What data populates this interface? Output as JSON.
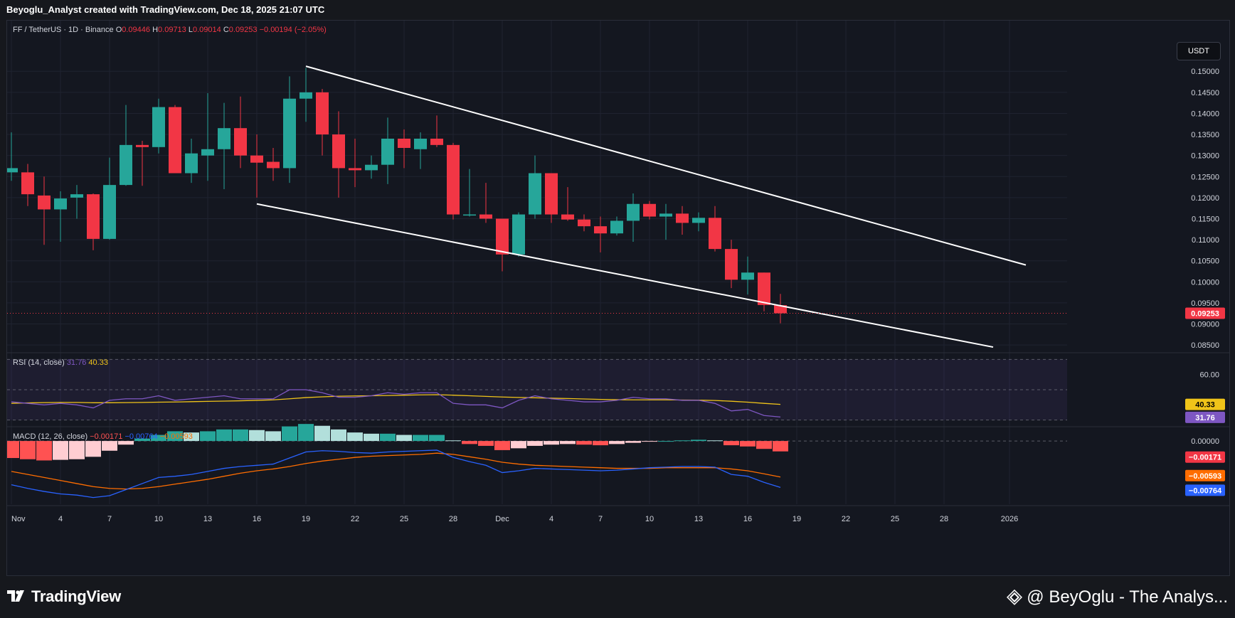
{
  "header": {
    "caption": "Beyoglu_Analyst created with TradingView.com, Dec 18, 2025 21:07 UTC"
  },
  "currency_button": "USDT",
  "legend": {
    "symbol": "FF / TetherUS · 1D · Binance",
    "o_label": "O",
    "o": "0.09446",
    "h_label": "H",
    "h": "0.09713",
    "l_label": "L",
    "l": "0.09014",
    "c_label": "C",
    "c": "0.09253",
    "change": "−0.00194 (−2.05%)"
  },
  "rsi_legend": {
    "name": "RSI (14, close)",
    "rsi": "31.76",
    "ma": "40.33"
  },
  "macd_legend": {
    "name": "MACD (12, 26, close)",
    "hist": "−0.00171",
    "macd": "−0.00764",
    "signal": "−0.00593"
  },
  "footer": {
    "logo_text": "TradingView",
    "watermark": "@ BeyOglu - The Analys..."
  },
  "colors": {
    "up": "#26a69a",
    "down": "#f23645",
    "rsi_line": "#7e57c2",
    "rsi_ma": "#f0c419",
    "macd_line": "#2962ff",
    "signal_line": "#ff6d00",
    "grid": "#1f2330",
    "text": "#b2b5be"
  },
  "chart_data": {
    "type": "candlestick",
    "price_axis": {
      "ticks": [
        "0.15000",
        "0.14500",
        "0.14000",
        "0.13500",
        "0.13000",
        "0.12500",
        "0.12000",
        "0.11500",
        "0.11000",
        "0.10500",
        "0.10000",
        "0.09500",
        "0.09000",
        "0.08500"
      ],
      "ylim": [
        0.0835,
        0.1546
      ],
      "last_price": "0.09253",
      "last": 0.09253
    },
    "x_ticks": [
      "Nov",
      "4",
      "7",
      "10",
      "13",
      "16",
      "19",
      "22",
      "25",
      "28",
      "Dec",
      "4",
      "7",
      "10",
      "13",
      "16",
      "19",
      "22",
      "25",
      "28",
      "2026"
    ],
    "candles": [
      {
        "date": "2025-11-01",
        "o": 0.126,
        "h": 0.1355,
        "l": 0.124,
        "c": 0.127
      },
      {
        "date": "2025-11-02",
        "o": 0.126,
        "h": 0.128,
        "l": 0.118,
        "c": 0.1208
      },
      {
        "date": "2025-11-03",
        "o": 0.1205,
        "h": 0.125,
        "l": 0.1088,
        "c": 0.1172
      },
      {
        "date": "2025-11-04",
        "o": 0.1172,
        "h": 0.1215,
        "l": 0.1095,
        "c": 0.1198
      },
      {
        "date": "2025-11-05",
        "o": 0.12,
        "h": 0.123,
        "l": 0.115,
        "c": 0.1208
      },
      {
        "date": "2025-11-06",
        "o": 0.1208,
        "h": 0.121,
        "l": 0.1075,
        "c": 0.1102
      },
      {
        "date": "2025-11-07",
        "o": 0.1102,
        "h": 0.1295,
        "l": 0.11,
        "c": 0.123
      },
      {
        "date": "2025-11-08",
        "o": 0.123,
        "h": 0.142,
        "l": 0.1228,
        "c": 0.1325
      },
      {
        "date": "2025-11-09",
        "o": 0.1325,
        "h": 0.1335,
        "l": 0.1228,
        "c": 0.132
      },
      {
        "date": "2025-11-10",
        "o": 0.132,
        "h": 0.1435,
        "l": 0.1305,
        "c": 0.1415
      },
      {
        "date": "2025-11-11",
        "o": 0.1415,
        "h": 0.142,
        "l": 0.1258,
        "c": 0.1258
      },
      {
        "date": "2025-11-12",
        "o": 0.1258,
        "h": 0.134,
        "l": 0.1235,
        "c": 0.1305
      },
      {
        "date": "2025-11-13",
        "o": 0.13,
        "h": 0.1448,
        "l": 0.124,
        "c": 0.1315
      },
      {
        "date": "2025-11-14",
        "o": 0.1315,
        "h": 0.1425,
        "l": 0.122,
        "c": 0.1365
      },
      {
        "date": "2025-11-15",
        "o": 0.1365,
        "h": 0.144,
        "l": 0.127,
        "c": 0.13
      },
      {
        "date": "2025-11-16",
        "o": 0.13,
        "h": 0.135,
        "l": 0.12,
        "c": 0.1283
      },
      {
        "date": "2025-11-17",
        "o": 0.1285,
        "h": 0.1318,
        "l": 0.124,
        "c": 0.127
      },
      {
        "date": "2025-11-18",
        "o": 0.127,
        "h": 0.1488,
        "l": 0.1235,
        "c": 0.1435
      },
      {
        "date": "2025-11-19",
        "o": 0.1435,
        "h": 0.1508,
        "l": 0.138,
        "c": 0.145
      },
      {
        "date": "2025-11-20",
        "o": 0.145,
        "h": 0.1458,
        "l": 0.13,
        "c": 0.135
      },
      {
        "date": "2025-11-21",
        "o": 0.135,
        "h": 0.1405,
        "l": 0.12,
        "c": 0.127
      },
      {
        "date": "2025-11-22",
        "o": 0.127,
        "h": 0.134,
        "l": 0.1225,
        "c": 0.1265
      },
      {
        "date": "2025-11-23",
        "o": 0.1265,
        "h": 0.13,
        "l": 0.1245,
        "c": 0.1278
      },
      {
        "date": "2025-11-24",
        "o": 0.1278,
        "h": 0.139,
        "l": 0.1232,
        "c": 0.134
      },
      {
        "date": "2025-11-25",
        "o": 0.134,
        "h": 0.1362,
        "l": 0.127,
        "c": 0.1318
      },
      {
        "date": "2025-11-26",
        "o": 0.1315,
        "h": 0.1355,
        "l": 0.1268,
        "c": 0.134
      },
      {
        "date": "2025-11-27",
        "o": 0.134,
        "h": 0.1395,
        "l": 0.132,
        "c": 0.1325
      },
      {
        "date": "2025-11-28",
        "o": 0.1325,
        "h": 0.133,
        "l": 0.1148,
        "c": 0.116
      },
      {
        "date": "2025-11-29",
        "o": 0.116,
        "h": 0.1268,
        "l": 0.1155,
        "c": 0.116
      },
      {
        "date": "2025-11-30",
        "o": 0.116,
        "h": 0.1235,
        "l": 0.114,
        "c": 0.115
      },
      {
        "date": "2025-12-01",
        "o": 0.115,
        "h": 0.115,
        "l": 0.1025,
        "c": 0.1065
      },
      {
        "date": "2025-12-02",
        "o": 0.1065,
        "h": 0.1165,
        "l": 0.106,
        "c": 0.116
      },
      {
        "date": "2025-12-03",
        "o": 0.116,
        "h": 0.13,
        "l": 0.115,
        "c": 0.1258
      },
      {
        "date": "2025-12-04",
        "o": 0.1258,
        "h": 0.1258,
        "l": 0.114,
        "c": 0.116
      },
      {
        "date": "2025-12-05",
        "o": 0.116,
        "h": 0.1225,
        "l": 0.1145,
        "c": 0.1148
      },
      {
        "date": "2025-12-06",
        "o": 0.1148,
        "h": 0.116,
        "l": 0.112,
        "c": 0.1132
      },
      {
        "date": "2025-12-07",
        "o": 0.1132,
        "h": 0.1155,
        "l": 0.107,
        "c": 0.1115
      },
      {
        "date": "2025-12-08",
        "o": 0.1115,
        "h": 0.1155,
        "l": 0.111,
        "c": 0.1145
      },
      {
        "date": "2025-12-09",
        "o": 0.1145,
        "h": 0.121,
        "l": 0.1095,
        "c": 0.1185
      },
      {
        "date": "2025-12-10",
        "o": 0.1185,
        "h": 0.1192,
        "l": 0.1148,
        "c": 0.1155
      },
      {
        "date": "2025-12-11",
        "o": 0.1155,
        "h": 0.1185,
        "l": 0.11,
        "c": 0.1162
      },
      {
        "date": "2025-12-12",
        "o": 0.1162,
        "h": 0.118,
        "l": 0.1112,
        "c": 0.114
      },
      {
        "date": "2025-12-13",
        "o": 0.114,
        "h": 0.1165,
        "l": 0.112,
        "c": 0.1152
      },
      {
        "date": "2025-12-14",
        "o": 0.1152,
        "h": 0.118,
        "l": 0.1072,
        "c": 0.1078
      },
      {
        "date": "2025-12-15",
        "o": 0.1078,
        "h": 0.11,
        "l": 0.0985,
        "c": 0.1005
      },
      {
        "date": "2025-12-16",
        "o": 0.1005,
        "h": 0.106,
        "l": 0.097,
        "c": 0.1022
      },
      {
        "date": "2025-12-17",
        "o": 0.1022,
        "h": 0.1022,
        "l": 0.093,
        "c": 0.0945
      },
      {
        "date": "2025-12-18",
        "o": 0.09446,
        "h": 0.09713,
        "l": 0.09014,
        "c": 0.09253
      }
    ],
    "trendlines": [
      {
        "from": {
          "date": "2025-11-19",
          "price": 0.1512
        },
        "to": {
          "date": "2026-01-02",
          "price": 0.104
        }
      },
      {
        "from": {
          "date": "2025-11-16",
          "price": 0.1185
        },
        "to": {
          "date": "2025-12-31",
          "price": 0.0845
        }
      }
    ],
    "rsi": {
      "ticks": [
        "60.00"
      ],
      "upper_band": 70,
      "lower_band": 30,
      "ylim": [
        27,
        73
      ],
      "rsi_values": [
        42,
        41,
        40,
        41,
        40,
        38,
        43,
        44,
        44,
        46,
        43,
        44,
        45,
        46,
        44,
        44,
        44,
        50,
        50,
        48,
        45,
        45,
        46,
        48,
        47,
        48,
        48,
        41,
        40,
        40,
        38,
        43,
        46,
        44,
        43,
        42,
        42,
        43,
        45,
        44,
        44,
        43,
        43,
        41,
        36,
        37,
        33,
        32
      ],
      "ma_values": [
        41,
        41.3,
        41.5,
        41.6,
        41.6,
        41.4,
        41.4,
        41.5,
        41.6,
        41.8,
        41.9,
        42.1,
        42.3,
        42.5,
        42.7,
        43,
        43.3,
        44,
        44.8,
        45.3,
        45.7,
        45.9,
        46,
        46.2,
        46.4,
        46.6,
        46.7,
        46.4,
        46,
        45.6,
        45.2,
        44.9,
        44.7,
        44.4,
        44.2,
        43.9,
        43.6,
        43.4,
        43.3,
        43.3,
        43.3,
        43.2,
        43.1,
        42.9,
        42.4,
        41.8,
        41.0,
        40.33
      ],
      "last_rsi": "31.76",
      "last_ma": "40.33"
    },
    "macd": {
      "ticks": [
        "0.00000"
      ],
      "ylim": [
        -0.0104,
        0.002
      ],
      "hist": [
        -0.0028,
        -0.003,
        -0.0032,
        -0.0031,
        -0.003,
        -0.0026,
        -0.0016,
        -0.0006,
        0.0004,
        0.001,
        0.0016,
        0.0014,
        0.0016,
        0.0019,
        0.0019,
        0.0018,
        0.0016,
        0.0024,
        0.0028,
        0.0025,
        0.0019,
        0.0014,
        0.0012,
        0.0012,
        0.001,
        0.001,
        0.001,
        0.0001,
        -0.0005,
        -0.0008,
        -0.0015,
        -0.0012,
        -0.0008,
        -0.0006,
        -0.0005,
        -0.0006,
        -0.0007,
        -0.0005,
        -0.0003,
        -0.0001,
        0.0,
        0.0001,
        0.0002,
        0.0001,
        -0.0007,
        -0.0009,
        -0.0013,
        -0.00171
      ],
      "macd_line": [
        -0.0072,
        -0.0078,
        -0.0083,
        -0.0087,
        -0.0089,
        -0.0093,
        -0.009,
        -0.008,
        -0.007,
        -0.006,
        -0.0058,
        -0.0055,
        -0.005,
        -0.0045,
        -0.0042,
        -0.004,
        -0.0038,
        -0.0028,
        -0.0018,
        -0.0016,
        -0.0017,
        -0.0019,
        -0.002,
        -0.0018,
        -0.0017,
        -0.0016,
        -0.0015,
        -0.0027,
        -0.0034,
        -0.004,
        -0.0052,
        -0.0049,
        -0.0045,
        -0.0046,
        -0.0047,
        -0.0048,
        -0.0049,
        -0.0048,
        -0.0046,
        -0.0044,
        -0.0043,
        -0.0042,
        -0.0042,
        -0.0043,
        -0.0055,
        -0.0058,
        -0.0068,
        -0.00764
      ],
      "signal_line": [
        -0.005,
        -0.0055,
        -0.006,
        -0.0065,
        -0.007,
        -0.0075,
        -0.0078,
        -0.0079,
        -0.0078,
        -0.0075,
        -0.0071,
        -0.0067,
        -0.0063,
        -0.0058,
        -0.0053,
        -0.0049,
        -0.0046,
        -0.0042,
        -0.0037,
        -0.0033,
        -0.003,
        -0.0027,
        -0.0025,
        -0.0024,
        -0.0023,
        -0.0022,
        -0.002,
        -0.0022,
        -0.0026,
        -0.003,
        -0.0035,
        -0.0038,
        -0.004,
        -0.0041,
        -0.0042,
        -0.0043,
        -0.0044,
        -0.0045,
        -0.0045,
        -0.0045,
        -0.0044,
        -0.0044,
        -0.0044,
        -0.0044,
        -0.0046,
        -0.0049,
        -0.0054,
        -0.00593
      ],
      "last_hist": "−0.00171",
      "last_signal": "−0.00593",
      "last_macd": "−0.00764"
    }
  }
}
